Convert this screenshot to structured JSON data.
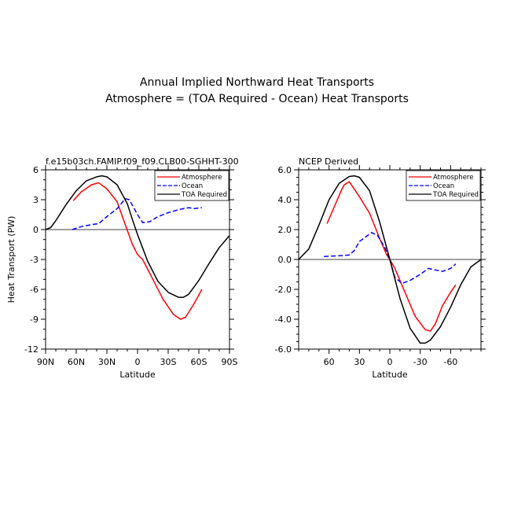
{
  "figure": {
    "title_line1": "Annual Implied Northward Heat Transports",
    "title_line2": "Atmosphere = (TOA Required - Ocean) Heat Transports"
  },
  "colors": {
    "atmosphere": "#ff0000",
    "ocean": "#0000ff",
    "toa": "#000000"
  },
  "chart_data": [
    {
      "type": "line",
      "title": "f.e15b03ch.FAMIP.f09_f09.CLB00-SGHHT-300",
      "xlabel": "Latitude",
      "ylabel": "Heat Transport (PW)",
      "xlim": [
        90,
        -90
      ],
      "ylim": [
        -12,
        6
      ],
      "xticks": [
        90,
        60,
        30,
        0,
        -30,
        -60,
        -90
      ],
      "xticklabels": [
        "90N",
        "60N",
        "30N",
        "0",
        "30S",
        "60S",
        "90S"
      ],
      "yticks": [
        6,
        3,
        0,
        -3,
        -6,
        -9,
        -12
      ],
      "yticklabels": [
        "6",
        "3",
        "0",
        "-3",
        "-6",
        "-9",
        "-12"
      ],
      "legend": "top-right",
      "series": [
        {
          "name": "Atmosphere",
          "color": "#ff0000",
          "dash": "solid",
          "x": [
            63,
            55,
            45,
            38,
            30,
            20,
            12,
            5,
            0,
            -5,
            -15,
            -25,
            -35,
            -42,
            -47,
            -55,
            -63
          ],
          "y": [
            2.9,
            3.8,
            4.5,
            4.7,
            4.1,
            2.8,
            0.5,
            -1.5,
            -2.5,
            -3.0,
            -5.0,
            -7.0,
            -8.5,
            -9.0,
            -8.8,
            -7.5,
            -6.0
          ]
        },
        {
          "name": "Ocean",
          "color": "#0000ff",
          "dash": "dashed",
          "x": [
            64,
            55,
            45,
            38,
            30,
            20,
            12,
            8,
            0,
            -5,
            -12,
            -20,
            -30,
            -40,
            -50,
            -55,
            -63
          ],
          "y": [
            0.0,
            0.3,
            0.5,
            0.6,
            1.3,
            2.1,
            3.1,
            3.0,
            1.5,
            0.7,
            0.8,
            1.3,
            1.7,
            2.0,
            2.2,
            2.1,
            2.2
          ]
        },
        {
          "name": "TOA Required",
          "color": "#000000",
          "dash": "solid",
          "x": [
            90,
            85,
            80,
            70,
            60,
            50,
            40,
            35,
            30,
            20,
            10,
            5,
            0,
            -10,
            -20,
            -30,
            -40,
            -45,
            -50,
            -60,
            -70,
            -80,
            -85,
            -90
          ],
          "y": [
            0.0,
            0.2,
            0.9,
            2.5,
            3.9,
            4.9,
            5.3,
            5.4,
            5.3,
            4.5,
            2.6,
            1.0,
            -0.5,
            -3.2,
            -5.2,
            -6.3,
            -6.8,
            -6.8,
            -6.5,
            -5.1,
            -3.4,
            -1.8,
            -1.2,
            -0.6
          ]
        }
      ]
    },
    {
      "type": "line",
      "title": "NCEP Derived",
      "xlabel": "Latitude",
      "ylabel": "",
      "xlim": [
        90,
        -90
      ],
      "ylim": [
        -6,
        6
      ],
      "xticks": [
        60,
        30,
        0,
        -30,
        -60
      ],
      "xticklabels": [
        "60",
        "30",
        "0",
        "-30",
        "-60"
      ],
      "yticks": [
        6,
        4,
        2,
        0,
        -2,
        -4,
        -6
      ],
      "yticklabels": [
        "6.0",
        "4.0",
        "2.0",
        "0.0",
        "-2.0",
        "-4.0",
        "-6.0"
      ],
      "legend": "top-right",
      "series": [
        {
          "name": "Atmosphere",
          "color": "#ff0000",
          "dash": "solid",
          "x": [
            62,
            55,
            48,
            45,
            40,
            35,
            30,
            20,
            10,
            3,
            0,
            -5,
            -15,
            -25,
            -35,
            -40,
            -45,
            -52,
            -60,
            -65
          ],
          "y": [
            2.4,
            3.5,
            4.6,
            5.0,
            5.2,
            4.7,
            4.2,
            3.1,
            1.4,
            0.3,
            0.0,
            -0.6,
            -2.2,
            -3.8,
            -4.7,
            -4.8,
            -4.3,
            -3.1,
            -2.2,
            -1.7
          ]
        },
        {
          "name": "Ocean",
          "color": "#0000ff",
          "dash": "dashed",
          "x": [
            65,
            50,
            40,
            35,
            30,
            22,
            18,
            12,
            5,
            0,
            -5,
            -12,
            -20,
            -30,
            -38,
            -45,
            -52,
            -60,
            -65
          ],
          "y": [
            0.2,
            0.25,
            0.3,
            0.6,
            1.2,
            1.6,
            1.8,
            1.6,
            0.8,
            0.0,
            -1.2,
            -1.6,
            -1.4,
            -1.0,
            -0.6,
            -0.7,
            -0.8,
            -0.6,
            -0.3
          ]
        },
        {
          "name": "TOA Required",
          "color": "#000000",
          "dash": "solid",
          "x": [
            90,
            80,
            70,
            60,
            50,
            40,
            35,
            30,
            20,
            10,
            0,
            -10,
            -20,
            -30,
            -35,
            -40,
            -50,
            -60,
            -70,
            -80,
            -90
          ],
          "y": [
            0.0,
            0.7,
            2.3,
            4.0,
            5.1,
            5.55,
            5.6,
            5.5,
            4.6,
            2.5,
            0.0,
            -2.6,
            -4.6,
            -5.6,
            -5.6,
            -5.4,
            -4.5,
            -3.2,
            -1.7,
            -0.5,
            0.0
          ]
        }
      ]
    }
  ]
}
